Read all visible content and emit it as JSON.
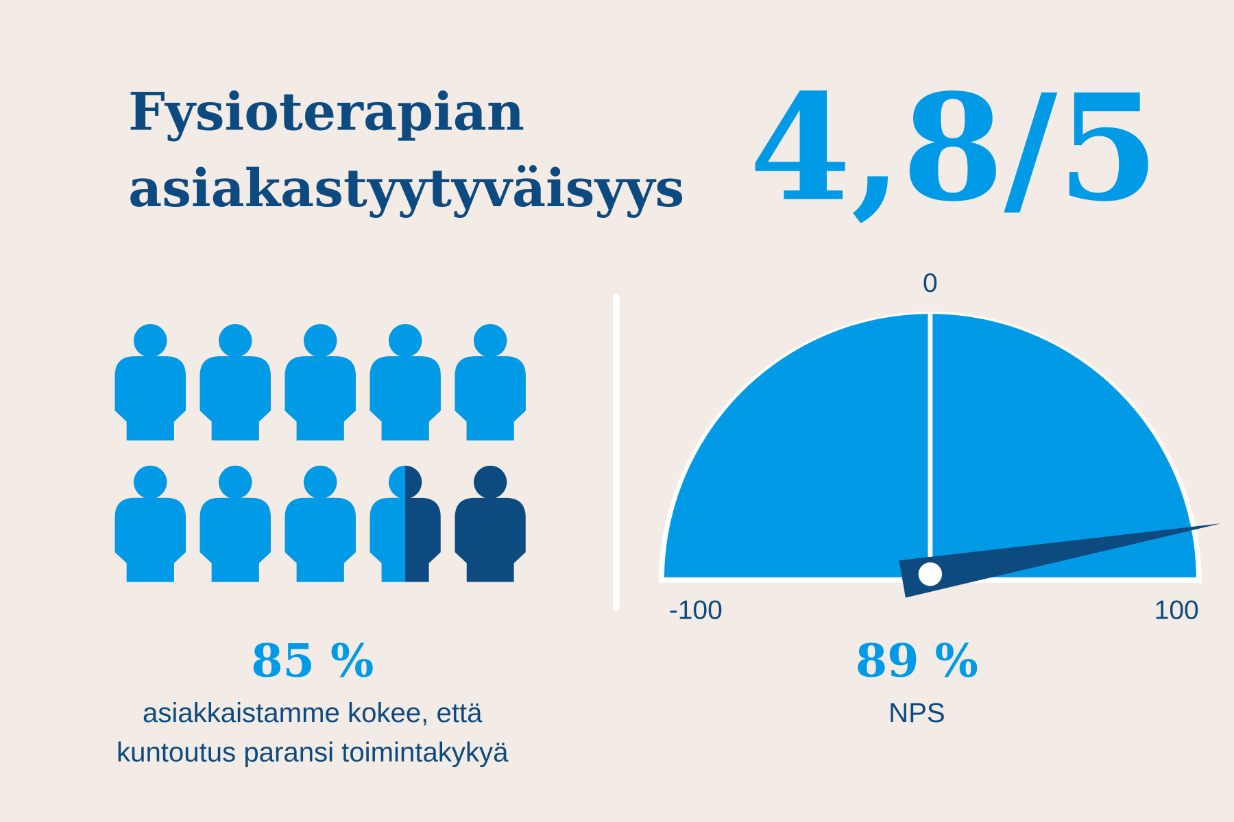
{
  "header": {
    "title_lines": [
      "Fysioterapian",
      "asiakastyytyväisyys"
    ],
    "score": "4,8/5"
  },
  "pictogram": {
    "value": 85,
    "value_label": "85 %",
    "per_figure": 10,
    "color": "#009ae6",
    "rest_color": "#0d4a80",
    "caption_lines": [
      "asiakkaistamme kokee, että",
      "kuntoutus paransi toimintakykyä"
    ]
  },
  "gauge": {
    "value": 89,
    "value_label": "89 %",
    "label": "NPS",
    "range": [
      -100,
      100
    ],
    "ticks": [
      -100,
      0,
      100
    ],
    "color": "#009ae6",
    "needle_color": "#0d4a80"
  }
}
